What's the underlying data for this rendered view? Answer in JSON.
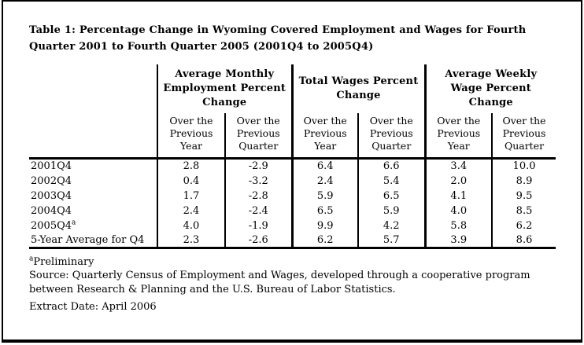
{
  "page": {
    "title": "Table 1: Percentage Change in Wyoming Covered Employment and Wages for Fourth Quarter 2001 to Fourth Quarter 2005 (2001Q4 to 2005Q4)"
  },
  "colors": {
    "text": "#000000",
    "background": "#ffffff",
    "rule": "#000000"
  },
  "table": {
    "column_groups": [
      {
        "label": "Average Monthly Employment Percent Change"
      },
      {
        "label": "Total Wages Percent Change"
      },
      {
        "label": "Average Weekly Wage Percent Change"
      }
    ],
    "subheaders": {
      "year": "Over the Previous Year",
      "quarter": "Over the Previous Quarter"
    },
    "rows": [
      {
        "label": "2001Q4",
        "values": [
          "2.8",
          "-2.9",
          "6.4",
          "6.6",
          "3.4",
          "10.0"
        ]
      },
      {
        "label": "2002Q4",
        "values": [
          "0.4",
          "-3.2",
          "2.4",
          "5.4",
          "2.0",
          "8.9"
        ]
      },
      {
        "label": "2003Q4",
        "values": [
          "1.7",
          "-2.8",
          "5.9",
          "6.5",
          "4.1",
          "9.5"
        ]
      },
      {
        "label": "2004Q4",
        "values": [
          "2.4",
          "-2.4",
          "6.5",
          "5.9",
          "4.0",
          "8.5"
        ]
      },
      {
        "label": "2005Q4",
        "label_sup": "a",
        "values": [
          "4.0",
          "-1.9",
          "9.9",
          "4.2",
          "5.8",
          "6.2"
        ]
      },
      {
        "label": "5-Year Average for Q4",
        "values": [
          "2.3",
          "-2.6",
          "6.2",
          "5.7",
          "3.9",
          "8.6"
        ]
      }
    ]
  },
  "footer": {
    "footnote_sup": "a",
    "footnote": "Preliminary",
    "source": "Source: Quarterly Census of Employment and Wages, developed through a cooperative program between Research & Planning and the U.S. Bureau of Labor Statistics.",
    "extract_date": "Extract Date: April 2006"
  }
}
